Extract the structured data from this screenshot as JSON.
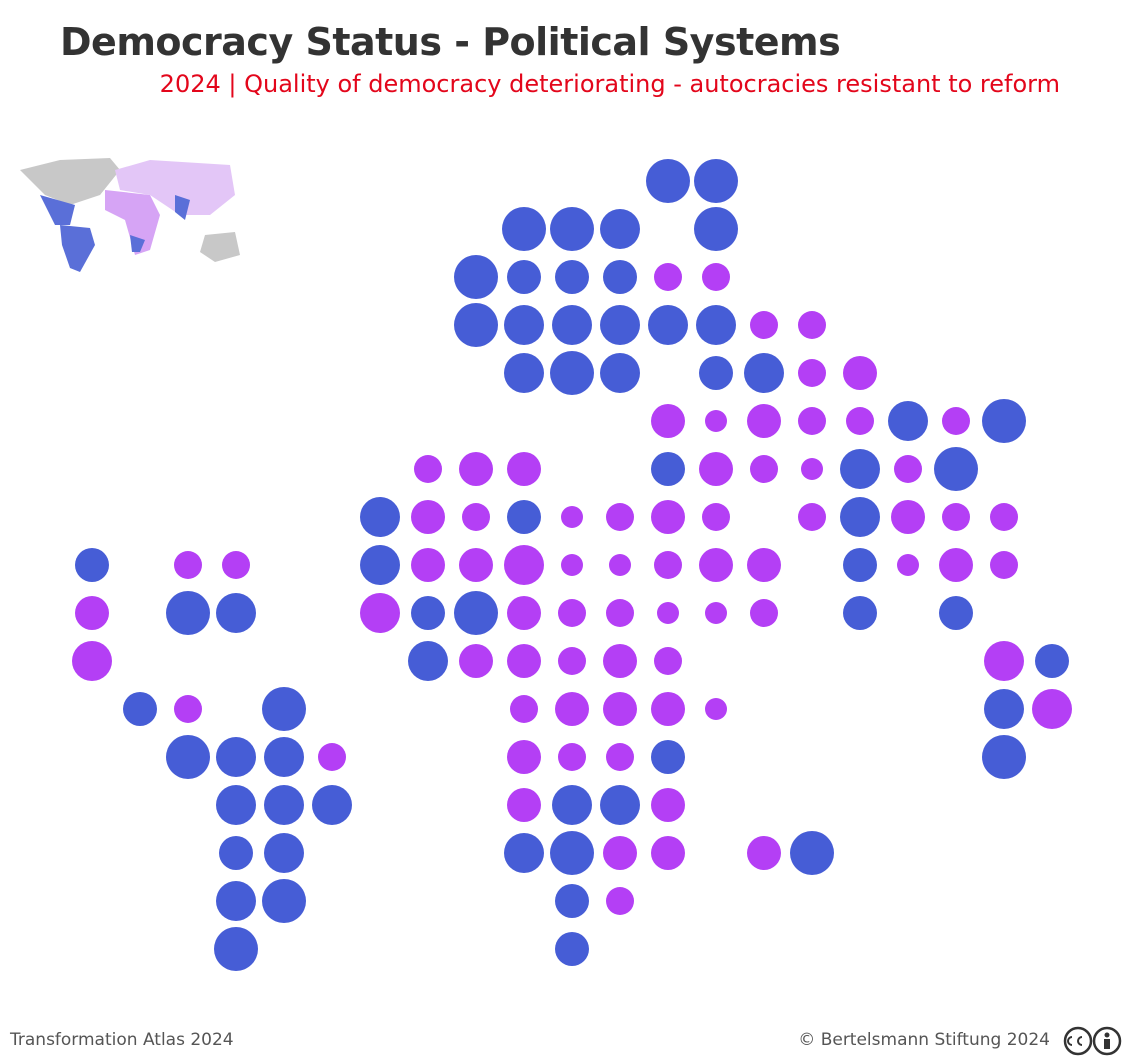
{
  "header": {
    "title": "Democracy Status - Political Systems",
    "subtitle": "2024 | Quality of democracy deteriorating - autocracies resistant to reform"
  },
  "footer": {
    "source": "Transformation Atlas 2024",
    "copyright": "© Bertelsmann Stiftung 2024"
  }
}
